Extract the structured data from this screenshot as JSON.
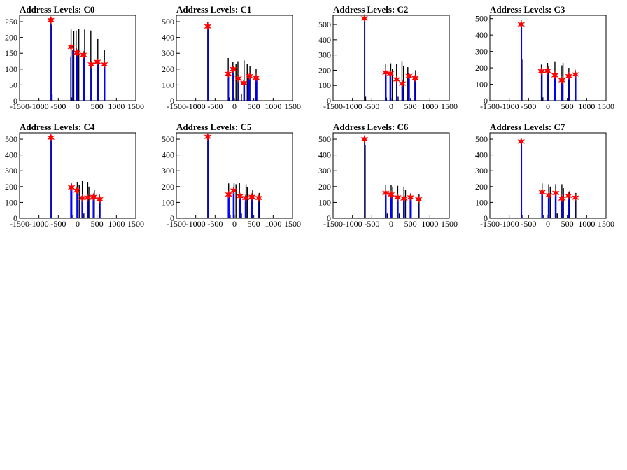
{
  "colors": {
    "bars_primary": "#000000",
    "bars_secondary": "#0000ff",
    "peak_marker": "#ff0000",
    "frame": "#000000",
    "background": "#ffffff"
  },
  "marker_icon": "star-marker",
  "chart_data": [
    {
      "type": "bar",
      "title": "Address Levels: C0",
      "xlabel": "",
      "ylabel": "",
      "xlim": [
        -1500,
        1500
      ],
      "ylim": [
        0,
        270
      ],
      "xticks": [
        -1500,
        -1000,
        -500,
        0,
        500,
        1000,
        1500
      ],
      "xtick_labels": [
        "-1500",
        "-1000",
        "-500",
        "0",
        "500",
        "1000",
        "1500"
      ],
      "yticks": [
        0,
        50,
        100,
        150,
        200,
        250
      ],
      "ytick_labels": [
        "0",
        "50",
        "100",
        "150",
        "200",
        "250"
      ],
      "series": [
        {
          "color": "#000000",
          "x": [
            -690,
            -660,
            -170,
            -150,
            -100,
            -40,
            30,
            160,
            180,
            340,
            520,
            690
          ],
          "values": [
            255,
            20,
            225,
            10,
            220,
            222,
            228,
            30,
            225,
            222,
            195,
            160
          ]
        },
        {
          "color": "#0000ff",
          "x": [
            -680,
            -180,
            -130,
            -20,
            0,
            150,
            170,
            350,
            360,
            510,
            540,
            700
          ],
          "values": [
            240,
            140,
            160,
            150,
            155,
            140,
            145,
            110,
            120,
            120,
            125,
            110
          ]
        }
      ],
      "peaks": [
        {
          "x": -690,
          "y": 255
        },
        {
          "x": -170,
          "y": 170
        },
        {
          "x": -20,
          "y": 152
        },
        {
          "x": 150,
          "y": 145
        },
        {
          "x": 350,
          "y": 115
        },
        {
          "x": 510,
          "y": 123
        },
        {
          "x": 690,
          "y": 115
        }
      ]
    },
    {
      "type": "bar",
      "title": "Address Levels: C1",
      "xlabel": "",
      "ylabel": "",
      "xlim": [
        -1500,
        1500
      ],
      "ylim": [
        0,
        540
      ],
      "xticks": [
        -1500,
        -1000,
        -500,
        0,
        500,
        1000,
        1500
      ],
      "xtick_labels": [
        "-1500",
        "-1000",
        "-500",
        "0",
        "500",
        "1000",
        "1500"
      ],
      "yticks": [
        0,
        100,
        200,
        300,
        400,
        500
      ],
      "ytick_labels": [
        "0",
        "100",
        "200",
        "300",
        "400",
        "500"
      ],
      "series": [
        {
          "color": "#000000",
          "x": [
            -690,
            -670,
            -160,
            -130,
            -40,
            40,
            90,
            180,
            250,
            330,
            400,
            560
          ],
          "values": [
            500,
            30,
            270,
            20,
            245,
            230,
            250,
            40,
            255,
            230,
            220,
            200
          ]
        },
        {
          "color": "#0000ff",
          "x": [
            -680,
            -150,
            -30,
            -20,
            100,
            110,
            240,
            260,
            370,
            390,
            550,
            580
          ],
          "values": [
            480,
            180,
            200,
            190,
            150,
            140,
            110,
            120,
            160,
            150,
            150,
            140
          ]
        }
      ],
      "peaks": [
        {
          "x": -690,
          "y": 470
        },
        {
          "x": -160,
          "y": 170
        },
        {
          "x": -30,
          "y": 200
        },
        {
          "x": 100,
          "y": 140
        },
        {
          "x": 240,
          "y": 112
        },
        {
          "x": 390,
          "y": 155
        },
        {
          "x": 560,
          "y": 145
        }
      ]
    },
    {
      "type": "bar",
      "title": "Address Levels: C2",
      "xlabel": "",
      "ylabel": "",
      "xlim": [
        -1500,
        1500
      ],
      "ylim": [
        0,
        560
      ],
      "xticks": [
        -1500,
        -1000,
        -500,
        0,
        500,
        1000,
        1500
      ],
      "xtick_labels": [
        "-1500",
        "-1000",
        "-500",
        "0",
        "500",
        "1000",
        "1500"
      ],
      "yticks": [
        0,
        100,
        200,
        300,
        400,
        500
      ],
      "ytick_labels": [
        "0",
        "100",
        "200",
        "300",
        "400",
        "500"
      ],
      "series": [
        {
          "color": "#000000",
          "x": [
            -690,
            -660,
            -140,
            -120,
            -10,
            30,
            140,
            180,
            280,
            320,
            430,
            630
          ],
          "values": [
            530,
            30,
            240,
            20,
            245,
            210,
            240,
            30,
            260,
            230,
            220,
            200
          ]
        },
        {
          "color": "#0000ff",
          "x": [
            -680,
            -150,
            -130,
            -30,
            -10,
            140,
            150,
            280,
            300,
            450,
            470,
            610
          ],
          "values": [
            540,
            180,
            190,
            185,
            175,
            150,
            140,
            110,
            120,
            165,
            160,
            150
          ]
        }
      ],
      "peaks": [
        {
          "x": -690,
          "y": 540
        },
        {
          "x": -140,
          "y": 185
        },
        {
          "x": -20,
          "y": 178
        },
        {
          "x": 140,
          "y": 140
        },
        {
          "x": 290,
          "y": 112
        },
        {
          "x": 460,
          "y": 162
        },
        {
          "x": 620,
          "y": 148
        }
      ]
    },
    {
      "type": "bar",
      "title": "Address Levels: C3",
      "xlabel": "",
      "ylabel": "",
      "xlim": [
        -1500,
        1500
      ],
      "ylim": [
        0,
        520
      ],
      "xticks": [
        -1500,
        -1000,
        -500,
        0,
        500,
        1000,
        1500
      ],
      "xtick_labels": [
        "-1500",
        "-1000",
        "-500",
        "0",
        "500",
        "1000",
        "1500"
      ],
      "yticks": [
        0,
        100,
        200,
        300,
        400,
        500
      ],
      "ytick_labels": [
        "0",
        "100",
        "200",
        "300",
        "400",
        "500"
      ],
      "series": [
        {
          "color": "#000000",
          "x": [
            -690,
            -670,
            -170,
            -130,
            -10,
            20,
            180,
            200,
            360,
            390,
            540,
            700
          ],
          "values": [
            490,
            250,
            220,
            20,
            230,
            210,
            240,
            30,
            215,
            230,
            200,
            190
          ]
        },
        {
          "color": "#0000ff",
          "x": [
            -680,
            -160,
            -150,
            -20,
            0,
            170,
            190,
            350,
            370,
            520,
            560,
            720
          ],
          "values": [
            470,
            180,
            190,
            185,
            180,
            160,
            150,
            120,
            130,
            150,
            145,
            160
          ]
        }
      ],
      "peaks": [
        {
          "x": -690,
          "y": 465
        },
        {
          "x": -170,
          "y": 180
        },
        {
          "x": -10,
          "y": 182
        },
        {
          "x": 180,
          "y": 155
        },
        {
          "x": 360,
          "y": 125
        },
        {
          "x": 540,
          "y": 150
        },
        {
          "x": 710,
          "y": 160
        }
      ]
    },
    {
      "type": "bar",
      "title": "Address Levels: C4",
      "xlabel": "",
      "ylabel": "",
      "xlim": [
        -1500,
        1500
      ],
      "ylim": [
        0,
        540
      ],
      "xticks": [
        -1500,
        -1000,
        -500,
        0,
        500,
        1000,
        1500
      ],
      "xtick_labels": [
        "-1500",
        "-1000",
        "-500",
        "0",
        "500",
        "1000",
        "1500"
      ],
      "yticks": [
        0,
        100,
        200,
        300,
        400,
        500
      ],
      "ytick_labels": [
        "0",
        "100",
        "200",
        "300",
        "400",
        "500"
      ],
      "series": [
        {
          "color": "#000000",
          "x": [
            -690,
            -670,
            -160,
            -120,
            -10,
            40,
            120,
            160,
            260,
            290,
            430,
            560
          ],
          "values": [
            520,
            30,
            220,
            20,
            230,
            210,
            235,
            30,
            230,
            200,
            180,
            150
          ]
        },
        {
          "color": "#0000ff",
          "x": [
            -680,
            -180,
            -150,
            -20,
            -10,
            110,
            130,
            250,
            270,
            400,
            420,
            580
          ],
          "values": [
            500,
            200,
            190,
            180,
            170,
            140,
            130,
            130,
            140,
            140,
            135,
            130
          ]
        }
      ],
      "peaks": [
        {
          "x": -690,
          "y": 510
        },
        {
          "x": -160,
          "y": 195
        },
        {
          "x": -20,
          "y": 175
        },
        {
          "x": 120,
          "y": 128
        },
        {
          "x": 260,
          "y": 130
        },
        {
          "x": 410,
          "y": 135
        },
        {
          "x": 570,
          "y": 120
        }
      ]
    },
    {
      "type": "bar",
      "title": "Address Levels: C5",
      "xlabel": "",
      "ylabel": "",
      "xlim": [
        -1500,
        1500
      ],
      "ylim": [
        0,
        540
      ],
      "xticks": [
        -1500,
        -1000,
        -500,
        0,
        500,
        1000,
        1500
      ],
      "xtick_labels": [
        "-1500",
        "-1000",
        "-500",
        "0",
        "500",
        "1000",
        "1500"
      ],
      "yticks": [
        0,
        100,
        200,
        300,
        400,
        500
      ],
      "ytick_labels": [
        "0",
        "100",
        "200",
        "300",
        "400",
        "500"
      ],
      "series": [
        {
          "color": "#000000",
          "x": [
            -690,
            -670,
            -150,
            -110,
            -10,
            40,
            130,
            180,
            300,
            330,
            470,
            640
          ],
          "values": [
            520,
            120,
            220,
            20,
            220,
            215,
            225,
            30,
            215,
            195,
            180,
            160
          ]
        },
        {
          "color": "#0000ff",
          "x": [
            -680,
            -160,
            -140,
            -30,
            -10,
            120,
            150,
            280,
            300,
            440,
            460,
            620
          ],
          "values": [
            510,
            160,
            150,
            180,
            170,
            150,
            140,
            130,
            135,
            140,
            135,
            130
          ]
        }
      ],
      "peaks": [
        {
          "x": -690,
          "y": 515
        },
        {
          "x": -150,
          "y": 150
        },
        {
          "x": -20,
          "y": 175
        },
        {
          "x": 140,
          "y": 140
        },
        {
          "x": 290,
          "y": 128
        },
        {
          "x": 450,
          "y": 135
        },
        {
          "x": 630,
          "y": 128
        }
      ]
    },
    {
      "type": "bar",
      "title": "Address Levels: C6",
      "xlabel": "",
      "ylabel": "",
      "xlim": [
        -1500,
        1500
      ],
      "ylim": [
        0,
        540
      ],
      "xticks": [
        -1500,
        -1000,
        -500,
        0,
        500,
        1000,
        1500
      ],
      "xtick_labels": [
        "-1500",
        "-1000",
        "-500",
        "0",
        "500",
        "1000",
        "1500"
      ],
      "yticks": [
        0,
        100,
        200,
        300,
        400,
        500
      ],
      "ytick_labels": [
        "0",
        "100",
        "200",
        "300",
        "400",
        "500"
      ],
      "series": [
        {
          "color": "#000000",
          "x": [
            -690,
            -670,
            -140,
            -100,
            0,
            40,
            170,
            210,
            330,
            370,
            510,
            720
          ],
          "values": [
            510,
            460,
            210,
            30,
            210,
            200,
            205,
            30,
            200,
            180,
            160,
            150
          ]
        },
        {
          "color": "#0000ff",
          "x": [
            -680,
            -150,
            -130,
            -10,
            10,
            160,
            180,
            320,
            340,
            490,
            520,
            700
          ],
          "values": [
            500,
            160,
            165,
            150,
            155,
            130,
            135,
            120,
            125,
            135,
            130,
            120
          ]
        }
      ],
      "peaks": [
        {
          "x": -690,
          "y": 500
        },
        {
          "x": -140,
          "y": 160
        },
        {
          "x": 0,
          "y": 150
        },
        {
          "x": 170,
          "y": 132
        },
        {
          "x": 330,
          "y": 125
        },
        {
          "x": 500,
          "y": 132
        },
        {
          "x": 710,
          "y": 120
        }
      ]
    },
    {
      "type": "bar",
      "title": "Address Levels: C7",
      "xlabel": "",
      "ylabel": "",
      "xlim": [
        -1500,
        1500
      ],
      "ylim": [
        0,
        540
      ],
      "xticks": [
        -1500,
        -1000,
        -500,
        0,
        500,
        1000,
        1500
      ],
      "xtick_labels": [
        "-1500",
        "-1000",
        "-500",
        "0",
        "500",
        "1000",
        "1500"
      ],
      "yticks": [
        0,
        100,
        200,
        300,
        400,
        500
      ],
      "ytick_labels": [
        "0",
        "100",
        "200",
        "300",
        "400",
        "500"
      ],
      "series": [
        {
          "color": "#000000",
          "x": [
            -690,
            -670,
            -150,
            -110,
            20,
            60,
            200,
            240,
            360,
            400,
            550,
            720
          ],
          "values": [
            500,
            20,
            220,
            20,
            215,
            200,
            215,
            30,
            215,
            190,
            170,
            160
          ]
        },
        {
          "color": "#0000ff",
          "x": [
            -680,
            -160,
            -140,
            10,
            30,
            190,
            210,
            350,
            370,
            520,
            540,
            700
          ],
          "values": [
            490,
            170,
            160,
            150,
            145,
            165,
            155,
            120,
            130,
            145,
            140,
            130
          ]
        }
      ],
      "peaks": [
        {
          "x": -690,
          "y": 485
        },
        {
          "x": -150,
          "y": 165
        },
        {
          "x": 20,
          "y": 145
        },
        {
          "x": 200,
          "y": 160
        },
        {
          "x": 360,
          "y": 125
        },
        {
          "x": 530,
          "y": 142
        },
        {
          "x": 710,
          "y": 130
        }
      ]
    }
  ]
}
